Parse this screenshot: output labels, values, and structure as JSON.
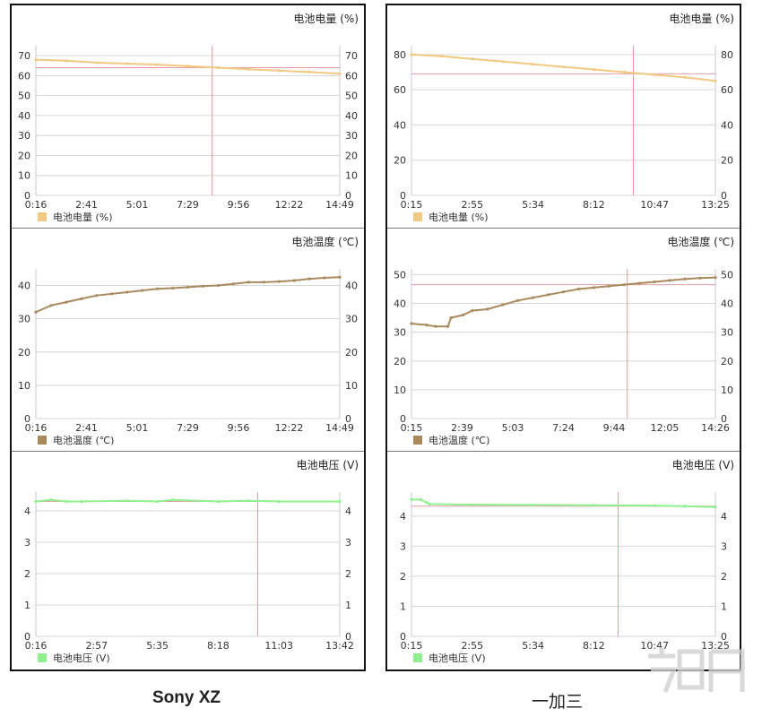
{
  "captions": {
    "left": "Sony XZ",
    "right": "一加三"
  },
  "chart_data": [
    {
      "device": "Sony XZ",
      "type": "line",
      "title": "电池电量 (%)",
      "legend": "电池电量 (%)",
      "x_ticks": [
        "0:16",
        "2:41",
        "5:01",
        "7:29",
        "9:56",
        "12:22",
        "14:49"
      ],
      "ylim": [
        0,
        75
      ],
      "y_ticks": [
        0,
        10,
        20,
        30,
        40,
        50,
        60,
        70
      ],
      "cursor_x": 0.58,
      "cursor_y": 64,
      "series": [
        {
          "x": [
            0,
            0.1,
            0.2,
            0.3,
            0.4,
            0.5,
            0.6,
            0.7,
            0.8,
            0.9,
            1
          ],
          "y": [
            68,
            67.5,
            66.5,
            66,
            65.5,
            64.8,
            64,
            63.2,
            62.5,
            61.8,
            61
          ]
        }
      ],
      "color": "#f2c980"
    },
    {
      "device": "Sony XZ",
      "type": "line",
      "title": "电池温度 (℃)",
      "legend": "电池温度 (℃)",
      "x_ticks": [
        "0:16",
        "2:41",
        "5:01",
        "7:29",
        "9:56",
        "12:22",
        "14:49"
      ],
      "ylim": [
        0,
        45
      ],
      "y_ticks": [
        0,
        10,
        20,
        30,
        40
      ],
      "series": [
        {
          "x": [
            0,
            0.05,
            0.1,
            0.15,
            0.2,
            0.25,
            0.3,
            0.35,
            0.4,
            0.45,
            0.5,
            0.55,
            0.6,
            0.65,
            0.7,
            0.75,
            0.8,
            0.85,
            0.9,
            0.95,
            1
          ],
          "y": [
            32,
            34,
            35,
            36,
            37,
            37.5,
            38,
            38.5,
            39,
            39.2,
            39.5,
            39.8,
            40,
            40.5,
            41,
            41,
            41.2,
            41.5,
            42,
            42.3,
            42.5
          ]
        }
      ],
      "color": "#a88a5e"
    },
    {
      "device": "Sony XZ",
      "type": "line",
      "title": "电池电压 (V)",
      "legend": "电池电压 (V)",
      "x_ticks": [
        "0:16",
        "2:57",
        "5:35",
        "8:18",
        "11:03",
        "13:42"
      ],
      "ylim": [
        0,
        4.6
      ],
      "y_ticks": [
        0,
        1,
        2,
        3,
        4
      ],
      "cursor_x": 0.73,
      "cursor_y": 4.3,
      "series": [
        {
          "x": [
            0,
            0.05,
            0.1,
            0.15,
            0.3,
            0.4,
            0.45,
            0.6,
            0.7,
            0.8,
            1
          ],
          "y": [
            4.3,
            4.35,
            4.3,
            4.3,
            4.32,
            4.3,
            4.35,
            4.3,
            4.32,
            4.3,
            4.3
          ]
        }
      ],
      "color": "#8ef08e"
    },
    {
      "device": "一加三",
      "type": "line",
      "title": "电池电量 (%)",
      "legend": "电池电量 (%)",
      "x_ticks": [
        "0:15",
        "2:55",
        "5:34",
        "8:12",
        "10:47",
        "13:25"
      ],
      "ylim": [
        0,
        85
      ],
      "y_ticks": [
        0,
        20,
        40,
        60,
        80
      ],
      "cursor_x": 0.73,
      "cursor_y": 69,
      "series": [
        {
          "x": [
            0,
            0.1,
            0.2,
            0.3,
            0.4,
            0.5,
            0.6,
            0.7,
            0.8,
            0.9,
            1
          ],
          "y": [
            80,
            79,
            77.5,
            76,
            74.5,
            73,
            71.5,
            70,
            68.5,
            67,
            65
          ]
        }
      ],
      "color": "#f2c980"
    },
    {
      "device": "一加三",
      "type": "line",
      "title": "电池温度 (℃)",
      "legend": "电池温度 (℃)",
      "x_ticks": [
        "0:15",
        "2:39",
        "5:03",
        "7:24",
        "9:44",
        "12:05",
        "14:26"
      ],
      "ylim": [
        0,
        52
      ],
      "y_ticks": [
        0,
        10,
        20,
        30,
        40,
        50
      ],
      "cursor_x": 0.71,
      "cursor_y": 46.5,
      "series": [
        {
          "x": [
            0,
            0.05,
            0.08,
            0.12,
            0.13,
            0.17,
            0.2,
            0.25,
            0.3,
            0.35,
            0.4,
            0.45,
            0.5,
            0.55,
            0.6,
            0.65,
            0.7,
            0.75,
            0.8,
            0.85,
            0.9,
            0.95,
            1
          ],
          "y": [
            33,
            32.5,
            32,
            32,
            35,
            36,
            37.5,
            38,
            39.5,
            41,
            42,
            43,
            44,
            45,
            45.5,
            46,
            46.5,
            47,
            47.5,
            48,
            48.5,
            48.8,
            49
          ]
        }
      ],
      "color": "#a88a5e"
    },
    {
      "device": "一加三",
      "type": "line",
      "title": "电池电压 (V)",
      "legend": "电池电压 (V)",
      "x_ticks": [
        "0:15",
        "2:55",
        "5:34",
        "8:12",
        "10:47",
        "13:25"
      ],
      "ylim": [
        0,
        4.8
      ],
      "y_ticks": [
        0,
        1,
        2,
        3,
        4
      ],
      "cursor_x": 0.68,
      "cursor_y": 4.33,
      "series": [
        {
          "x": [
            0,
            0.03,
            0.05,
            0.06,
            0.2,
            0.4,
            0.6,
            0.8,
            0.9,
            1
          ],
          "y": [
            4.55,
            4.55,
            4.45,
            4.4,
            4.38,
            4.37,
            4.36,
            4.35,
            4.33,
            4.3
          ]
        }
      ],
      "color": "#8ef08e"
    }
  ]
}
